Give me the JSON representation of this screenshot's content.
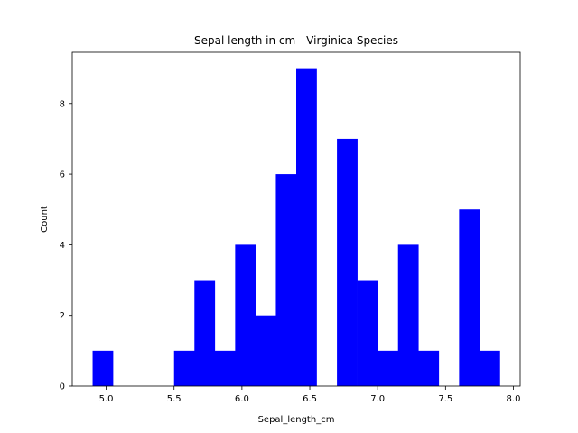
{
  "chart_data": {
    "type": "bar",
    "title": "Sepal length in cm - Virginica Species",
    "xlabel": "Sepal_length_cm",
    "ylabel": "Count",
    "color": "#0000ff",
    "xlim": [
      4.75,
      8.05
    ],
    "ylim": [
      0,
      9.45
    ],
    "xticks": [
      5.0,
      5.5,
      6.0,
      6.5,
      7.0,
      7.5,
      8.0
    ],
    "xtick_labels": [
      "5.0",
      "5.5",
      "6.0",
      "6.5",
      "7.0",
      "7.5",
      "8.0"
    ],
    "yticks": [
      0,
      2,
      4,
      6,
      8
    ],
    "ytick_labels": [
      "0",
      "2",
      "4",
      "6",
      "8"
    ],
    "grid": false,
    "bin_edges": [
      4.9,
      5.05,
      5.2,
      5.35,
      5.5,
      5.65,
      5.8,
      5.95,
      6.1,
      6.25,
      6.4,
      6.55,
      6.7,
      6.85,
      7.0,
      7.15,
      7.3,
      7.45,
      7.6,
      7.75,
      7.9
    ],
    "values": [
      1,
      0,
      0,
      0,
      1,
      3,
      1,
      4,
      2,
      6,
      9,
      0,
      7,
      3,
      1,
      4,
      1,
      0,
      5,
      1
    ]
  }
}
